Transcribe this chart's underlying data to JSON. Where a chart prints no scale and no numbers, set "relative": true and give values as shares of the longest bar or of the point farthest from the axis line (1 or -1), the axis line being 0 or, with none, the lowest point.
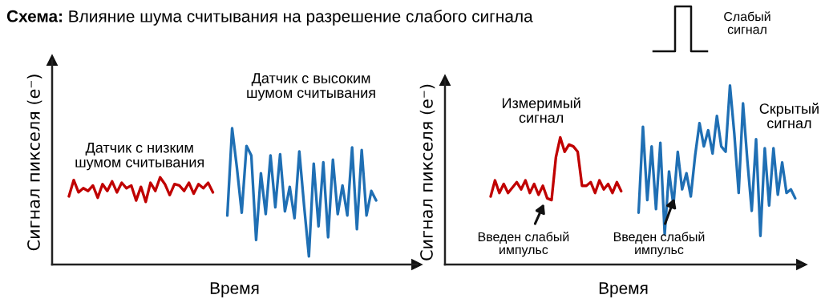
{
  "chart_data": [
    {
      "type": "line",
      "title": "Схема: Влияние шума считывания на разрешение слабого сигнала",
      "xlabel": "Время",
      "ylabel": "Сигнал пикселя (e⁻)",
      "relative": true,
      "categories": [
        null,
        null,
        null,
        null,
        null,
        null,
        null,
        null,
        null,
        null,
        null,
        null,
        null,
        null,
        null,
        null,
        null,
        null,
        null,
        null,
        null,
        null,
        null,
        null,
        null,
        null,
        null,
        null,
        null,
        null,
        null,
        null,
        null,
        null,
        null,
        null,
        null,
        null,
        null,
        null,
        null,
        null,
        null,
        null,
        null,
        null,
        null,
        null,
        null,
        null,
        null,
        null,
        null,
        null,
        null,
        null,
        null,
        null,
        null,
        null,
        null,
        null,
        null,
        null,
        null,
        null,
        null,
        null,
        null,
        null,
        null,
        null,
        null,
        null,
        null,
        null
      ],
      "series": [
        {
          "name": "Датчик с низким шумом считывания",
          "color": "#c00000",
          "values": [
            null,
            null,
            null,
            0.5,
            0.62,
            0.53,
            0.56,
            0.54,
            0.58,
            0.49,
            0.59,
            0.54,
            0.61,
            0.53,
            0.6,
            0.56,
            0.58,
            0.47,
            0.57,
            0.46,
            0.6,
            0.54,
            0.64,
            0.59,
            0.51,
            0.59,
            0.58,
            0.54,
            0.6,
            0.52,
            0.59,
            0.56,
            0.6,
            0.53,
            null,
            null,
            null,
            null,
            null,
            null,
            null,
            null,
            null,
            null,
            null,
            null,
            null,
            null,
            null,
            null,
            null,
            null,
            null,
            null,
            null,
            null,
            null,
            null,
            null,
            null,
            null,
            null,
            null,
            null,
            null,
            null,
            null,
            null,
            null,
            null,
            null,
            null,
            null,
            null,
            null,
            null
          ]
        },
        {
          "name": "Датчик с высоким шумом считывания",
          "color": "#1f6fb4",
          "values": [
            null,
            null,
            null,
            null,
            null,
            null,
            null,
            null,
            null,
            null,
            null,
            null,
            null,
            null,
            null,
            null,
            null,
            null,
            null,
            null,
            null,
            null,
            null,
            null,
            null,
            null,
            null,
            null,
            null,
            null,
            null,
            null,
            null,
            null,
            null,
            null,
            0.36,
            1.0,
            0.71,
            0.38,
            0.87,
            0.8,
            0.18,
            0.67,
            0.37,
            0.8,
            0.42,
            0.81,
            0.39,
            0.57,
            0.34,
            0.83,
            0.43,
            0.06,
            0.74,
            0.28,
            0.75,
            0.2,
            0.77,
            0.37,
            0.58,
            0.36,
            0.86,
            0.26,
            0.84,
            0.36,
            0.54,
            0.47,
            null,
            null,
            null,
            null,
            null,
            null,
            null,
            null
          ]
        }
      ]
    },
    {
      "type": "line",
      "xlabel": "Время",
      "ylabel": "Сигнал пикселя (e⁻)",
      "relative": true,
      "categories": [
        null,
        null,
        null,
        null,
        null,
        null,
        null,
        null,
        null,
        null,
        null,
        null,
        null,
        null,
        null,
        null,
        null,
        null,
        null,
        null,
        null,
        null,
        null,
        null,
        null,
        null,
        null,
        null,
        null,
        null,
        null,
        null,
        null,
        null,
        null,
        null,
        null,
        null,
        null,
        null,
        null,
        null,
        null,
        null,
        null,
        null,
        null,
        null,
        null,
        null,
        null,
        null,
        null,
        null,
        null,
        null,
        null,
        null,
        null,
        null,
        null,
        null,
        null,
        null,
        null,
        null,
        null,
        null,
        null,
        null,
        null,
        null,
        null,
        null,
        null,
        null,
        null,
        null,
        null,
        null,
        null,
        null
      ],
      "annotations": [
        "Введен слабый импульс",
        "Введен слабый импульс",
        "Слабый сигнал"
      ],
      "series": [
        {
          "name": "Измеримый сигнал",
          "color": "#c00000",
          "values": [
            null,
            null,
            null,
            null,
            null,
            null,
            null,
            null,
            null,
            null,
            0.38,
            0.47,
            0.4,
            0.45,
            0.4,
            0.43,
            0.46,
            0.42,
            0.47,
            0.4,
            0.45,
            0.39,
            0.44,
            0.37,
            0.36,
            0.6,
            0.71,
            0.63,
            0.67,
            0.66,
            0.63,
            0.44,
            0.44,
            0.46,
            0.4,
            0.47,
            0.42,
            0.45,
            0.4,
            0.46,
            0.41,
            null,
            null,
            null,
            null,
            null,
            null,
            null,
            null,
            null,
            null,
            null,
            null,
            null,
            null,
            null,
            null,
            null,
            null,
            null,
            null,
            null,
            null,
            null,
            null,
            null,
            null,
            null,
            null,
            null,
            null,
            null,
            null,
            null,
            null,
            null,
            null,
            null,
            null,
            null,
            null,
            null
          ]
        },
        {
          "name": "Скрытый сигнал",
          "color": "#1f6fb4",
          "values": [
            null,
            null,
            null,
            null,
            null,
            null,
            null,
            null,
            null,
            null,
            null,
            null,
            null,
            null,
            null,
            null,
            null,
            null,
            null,
            null,
            null,
            null,
            null,
            null,
            null,
            null,
            null,
            null,
            null,
            null,
            null,
            null,
            null,
            null,
            null,
            null,
            null,
            null,
            null,
            null,
            null,
            null,
            null,
            null,
            0.29,
            0.77,
            0.36,
            0.66,
            0.31,
            0.68,
            0.17,
            0.52,
            0.33,
            0.63,
            0.42,
            0.51,
            0.38,
            0.61,
            0.79,
            0.66,
            0.75,
            0.62,
            0.83,
            0.66,
            0.63,
            1.0,
            0.73,
            0.4,
            0.9,
            0.58,
            0.3,
            0.7,
            0.16,
            0.65,
            0.33,
            0.65,
            0.39,
            0.57,
            0.4,
            0.42,
            0.37,
            null
          ]
        }
      ]
    }
  ]
}
